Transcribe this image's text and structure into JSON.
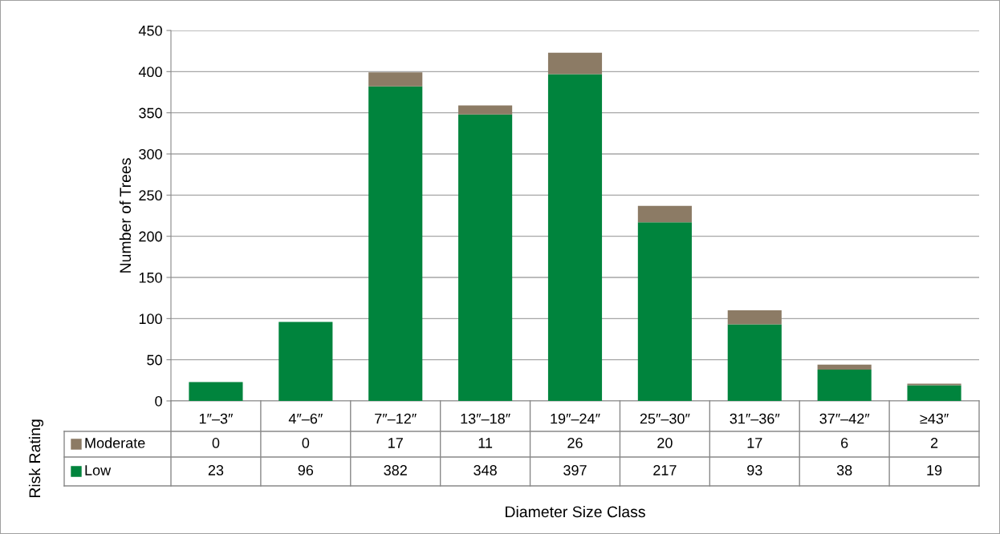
{
  "chart_data": {
    "type": "bar",
    "stacked": true,
    "annotations": [
      "Diameter Size Class"
    ],
    "ylabel": "Number of Trees",
    "legend_title": "Risk Rating",
    "categories": [
      "1″–3″",
      "4″–6″",
      "7″–12″",
      "13″–18″",
      "19″–24″",
      "25″–30″",
      "31″–36″",
      "37″–42″",
      "≥43″"
    ],
    "series": [
      {
        "name": "Low",
        "color": "#00843d",
        "values": [
          23,
          96,
          382,
          348,
          397,
          217,
          93,
          38,
          19
        ]
      },
      {
        "name": "Moderate",
        "color": "#8c7b65",
        "values": [
          0,
          0,
          17,
          11,
          26,
          20,
          17,
          6,
          2
        ]
      }
    ],
    "ylim": [
      0,
      450
    ],
    "yticks": [
      0,
      50,
      100,
      150,
      200,
      250,
      300,
      350,
      400,
      450
    ],
    "grid": "y",
    "legend": "bottom",
    "data_labels": true
  }
}
